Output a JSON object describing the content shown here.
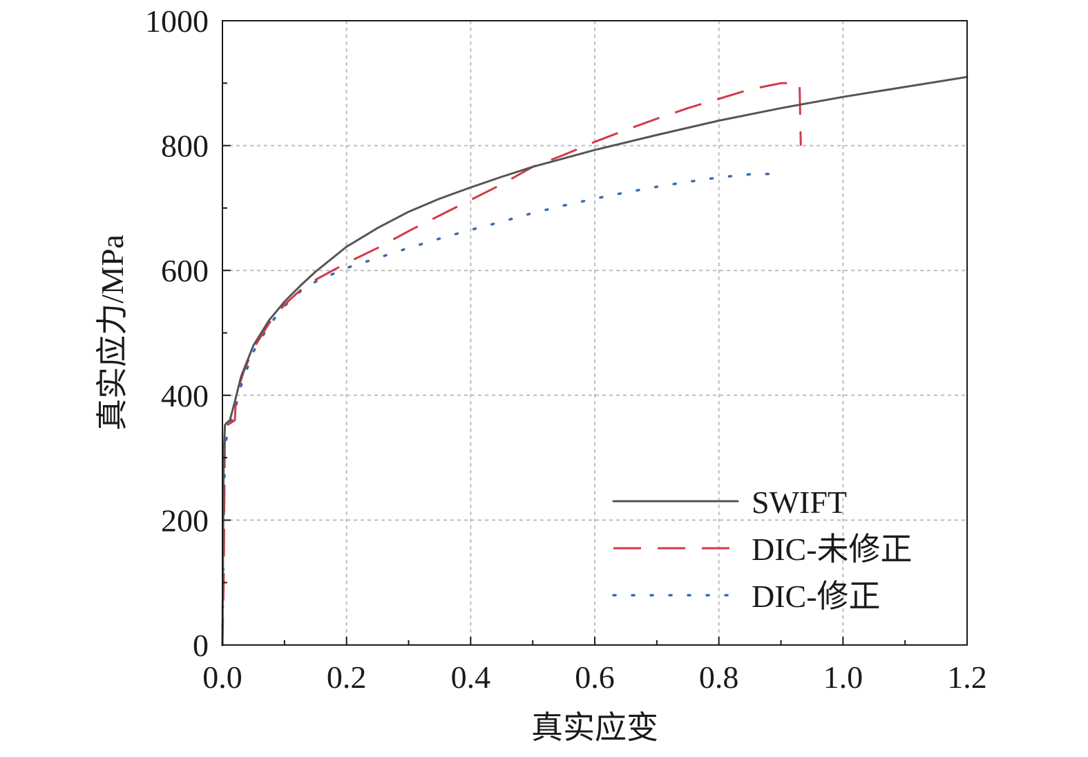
{
  "chart_data": {
    "type": "line",
    "xlabel": "真实应变",
    "ylabel": "真实应力/MPa",
    "xlim": [
      0,
      1.2
    ],
    "ylim": [
      0,
      1000
    ],
    "x_ticks": [
      "0.0",
      "0.2",
      "0.4",
      "0.6",
      "0.8",
      "1.0",
      "1.2"
    ],
    "x_tick_values": [
      0,
      0.2,
      0.4,
      0.6,
      0.8,
      1.0,
      1.2
    ],
    "y_ticks": [
      "0",
      "200",
      "400",
      "600",
      "800",
      "1000"
    ],
    "y_tick_values": [
      0,
      200,
      400,
      600,
      800,
      1000
    ],
    "grid": true,
    "legend_position": "bottom-right",
    "series": [
      {
        "name": "SWIFT",
        "color": "#555555",
        "style": "solid",
        "points": [
          [
            0,
            0
          ],
          [
            0.002,
            300
          ],
          [
            0.004,
            352
          ],
          [
            0.006,
            355
          ],
          [
            0.012,
            360
          ],
          [
            0.02,
            390
          ],
          [
            0.03,
            430
          ],
          [
            0.05,
            480
          ],
          [
            0.075,
            520
          ],
          [
            0.1,
            550
          ],
          [
            0.125,
            575
          ],
          [
            0.15,
            598
          ],
          [
            0.2,
            638
          ],
          [
            0.25,
            668
          ],
          [
            0.3,
            694
          ],
          [
            0.35,
            715
          ],
          [
            0.4,
            733
          ],
          [
            0.45,
            750
          ],
          [
            0.5,
            766
          ],
          [
            0.6,
            793
          ],
          [
            0.7,
            817
          ],
          [
            0.8,
            840
          ],
          [
            0.9,
            860
          ],
          [
            1.0,
            878
          ],
          [
            1.1,
            894
          ],
          [
            1.2,
            910
          ]
        ]
      },
      {
        "name": "DIC-未修正",
        "color": "#d23a4a",
        "style": "dashed",
        "points": [
          [
            0,
            0
          ],
          [
            0.002,
            100
          ],
          [
            0.004,
            350
          ],
          [
            0.012,
            355
          ],
          [
            0.02,
            360
          ],
          [
            0.022,
            400
          ],
          [
            0.035,
            440
          ],
          [
            0.05,
            475
          ],
          [
            0.075,
            515
          ],
          [
            0.1,
            545
          ],
          [
            0.125,
            568
          ],
          [
            0.15,
            585
          ],
          [
            0.2,
            612
          ],
          [
            0.25,
            636
          ],
          [
            0.3,
            663
          ],
          [
            0.35,
            688
          ],
          [
            0.4,
            713
          ],
          [
            0.45,
            738
          ],
          [
            0.5,
            766
          ],
          [
            0.55,
            785
          ],
          [
            0.6,
            806
          ],
          [
            0.65,
            825
          ],
          [
            0.7,
            843
          ],
          [
            0.75,
            860
          ],
          [
            0.8,
            875
          ],
          [
            0.85,
            890
          ],
          [
            0.9,
            900
          ],
          [
            0.93,
            900
          ],
          [
            0.932,
            800
          ]
        ]
      },
      {
        "name": "DIC-修正",
        "color": "#3a6ab0",
        "style": "dotted",
        "points": [
          [
            0,
            0
          ],
          [
            0.002,
            200
          ],
          [
            0.004,
            320
          ],
          [
            0.012,
            355
          ],
          [
            0.02,
            370
          ],
          [
            0.025,
            400
          ],
          [
            0.035,
            430
          ],
          [
            0.05,
            470
          ],
          [
            0.075,
            512
          ],
          [
            0.1,
            543
          ],
          [
            0.125,
            566
          ],
          [
            0.15,
            582
          ],
          [
            0.2,
            604
          ],
          [
            0.25,
            620
          ],
          [
            0.3,
            636
          ],
          [
            0.35,
            651
          ],
          [
            0.4,
            665
          ],
          [
            0.45,
            678
          ],
          [
            0.5,
            692
          ],
          [
            0.55,
            704
          ],
          [
            0.6,
            715
          ],
          [
            0.65,
            725
          ],
          [
            0.7,
            734
          ],
          [
            0.75,
            742
          ],
          [
            0.8,
            749
          ],
          [
            0.85,
            754
          ],
          [
            0.9,
            755
          ]
        ]
      }
    ]
  }
}
